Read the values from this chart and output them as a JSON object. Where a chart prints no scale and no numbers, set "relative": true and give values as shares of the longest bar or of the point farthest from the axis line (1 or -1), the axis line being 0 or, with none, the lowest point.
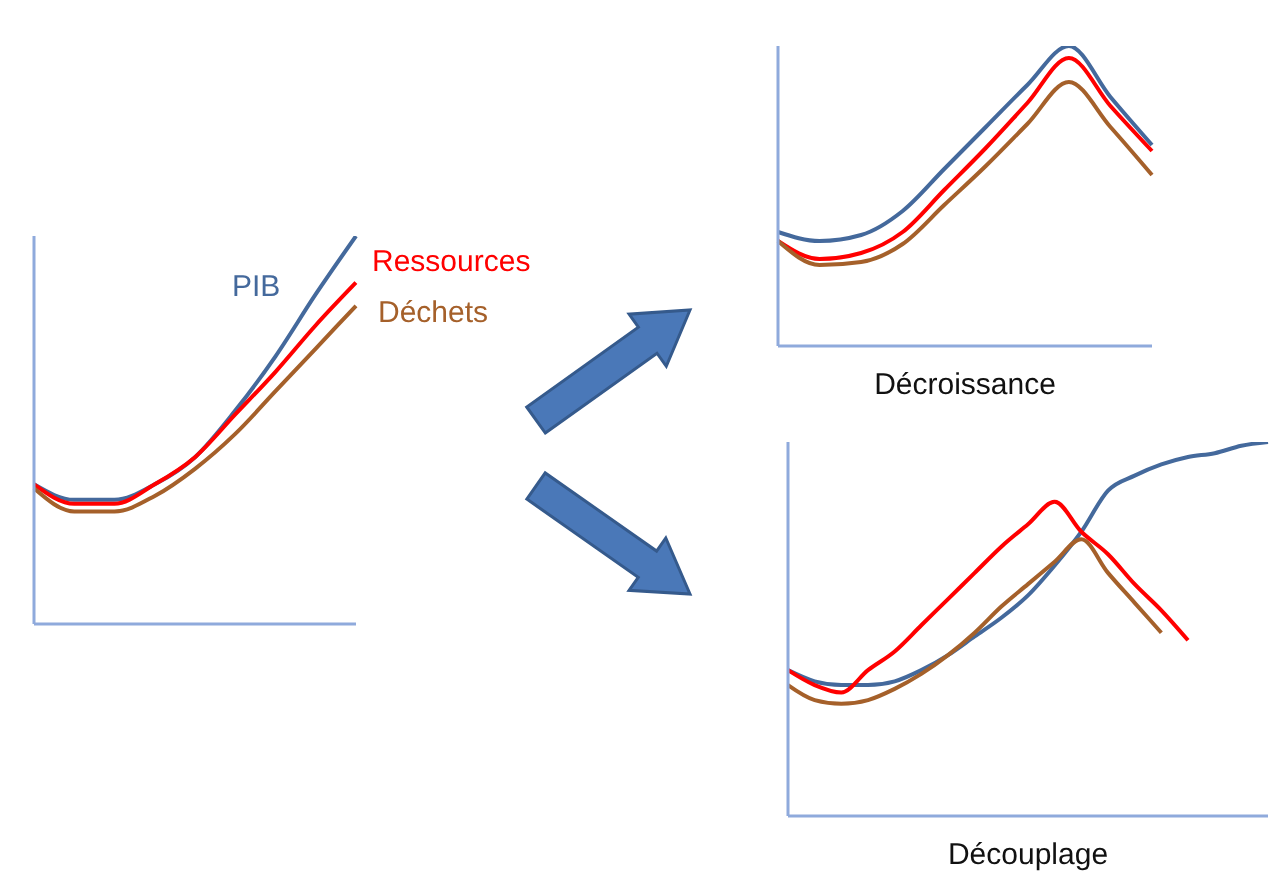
{
  "chart_data": [
    {
      "type": "line",
      "relative": true,
      "categories": [
        null,
        null,
        null,
        null,
        null,
        null,
        null,
        null,
        null
      ],
      "series": [
        {
          "name": "PIB",
          "color": "#44699c",
          "values": [
            0.36,
            0.32,
            0.32,
            0.36,
            0.43,
            0.55,
            0.69,
            0.85,
            1
          ]
        },
        {
          "name": "Ressources",
          "color": "#ff0000",
          "values": [
            0.36,
            0.31,
            0.31,
            0.36,
            0.43,
            0.54,
            0.65,
            0.77,
            0.88
          ]
        },
        {
          "name": "Déchets",
          "color": "#a5602a",
          "values": [
            0.35,
            0.29,
            0.29,
            0.33,
            0.4,
            0.49,
            0.6,
            0.71,
            0.82
          ]
        }
      ]
    },
    {
      "type": "line",
      "relative": true,
      "xlabel": "Décroissance",
      "categories": [
        null,
        null,
        null,
        null,
        null,
        null,
        null,
        null,
        null,
        null
      ],
      "series": [
        {
          "color": "#44699c",
          "values": [
            0.38,
            0.35,
            0.37,
            0.45,
            0.59,
            0.73,
            0.87,
            1,
            0.83,
            0.67
          ]
        },
        {
          "color": "#ff0000",
          "values": [
            0.35,
            0.29,
            0.31,
            0.38,
            0.52,
            0.66,
            0.81,
            0.96,
            0.8,
            0.65
          ]
        },
        {
          "color": "#a5602a",
          "values": [
            0.35,
            0.27,
            0.28,
            0.34,
            0.47,
            0.6,
            0.74,
            0.88,
            0.73,
            0.57
          ]
        }
      ]
    },
    {
      "type": "line",
      "relative": true,
      "xlabel": "Découplage",
      "categories": [
        null,
        null,
        null,
        null,
        null,
        null,
        null,
        null,
        null,
        null,
        null,
        null,
        null,
        null,
        null,
        null,
        null,
        null,
        null
      ],
      "series": [
        {
          "color": "#44699c",
          "values": [
            0.39,
            0.36,
            0.35,
            0.35,
            0.36,
            0.39,
            0.43,
            0.48,
            0.53,
            0.59,
            0.67,
            0.76,
            0.87,
            0.91,
            0.94,
            0.96,
            0.97,
            0.99,
            1
          ]
        },
        {
          "color": "#ff0000",
          "values": [
            0.39,
            0.35,
            0.33,
            0.39,
            0.44,
            0.51,
            0.58,
            0.65,
            0.72,
            0.78,
            0.84,
            0.76,
            0.7,
            0.62,
            0.55,
            0.47,
            null,
            null,
            null
          ]
        },
        {
          "color": "#a5602a",
          "values": [
            0.35,
            0.31,
            0.3,
            0.31,
            0.34,
            0.38,
            0.43,
            0.49,
            0.56,
            0.62,
            0.68,
            0.74,
            0.65,
            0.57,
            0.49,
            null,
            null,
            null,
            null
          ]
        }
      ]
    }
  ]
}
